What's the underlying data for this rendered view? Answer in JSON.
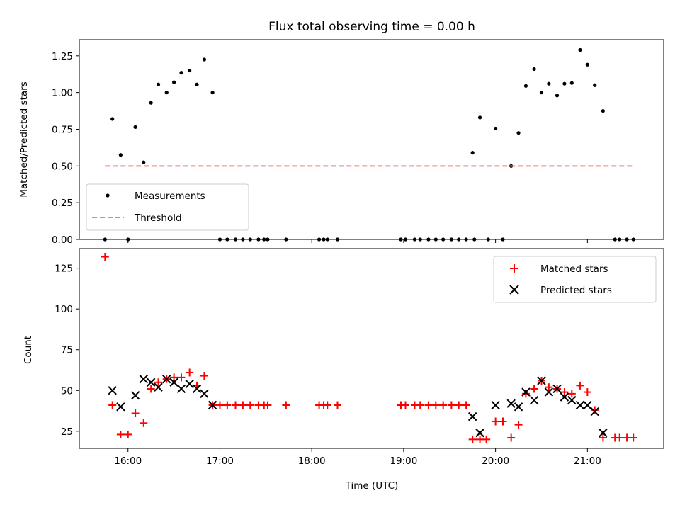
{
  "chart_data": [
    {
      "type": "scatter",
      "title": "Flux total observing time = 0.00 h",
      "xlabel": "",
      "ylabel": "Matched/Predicted stars",
      "xlim": [
        15.47,
        21.83
      ],
      "ylim": [
        0.0,
        1.36
      ],
      "yticks": [
        "0.00",
        "0.25",
        "0.50",
        "0.75",
        "1.00",
        "1.25"
      ],
      "ytick_values": [
        0.0,
        0.25,
        0.5,
        0.75,
        1.0,
        1.25
      ],
      "legend_position": "lower-left",
      "series": [
        {
          "name": "Measurements",
          "marker": "dot",
          "color": "#000000",
          "x": [
            15.75,
            15.83,
            15.92,
            16.0,
            16.08,
            16.17,
            16.25,
            16.33,
            16.42,
            16.5,
            16.58,
            16.67,
            16.75,
            16.83,
            16.92,
            17.0,
            17.08,
            17.17,
            17.25,
            17.33,
            17.42,
            17.48,
            17.52,
            17.72,
            18.08,
            18.13,
            18.17,
            18.28,
            18.97,
            19.02,
            19.12,
            19.18,
            19.27,
            19.35,
            19.43,
            19.52,
            19.6,
            19.68,
            19.77,
            19.75,
            19.83,
            19.92,
            20.0,
            20.08,
            20.17,
            20.25,
            20.33,
            20.42,
            20.5,
            20.58,
            20.67,
            20.75,
            20.83,
            20.92,
            21.0,
            21.08,
            21.17,
            21.3,
            21.35,
            21.43,
            21.5
          ],
          "y": [
            0.0,
            0.82,
            0.575,
            0.0,
            0.765,
            0.525,
            0.93,
            1.055,
            1.0,
            1.07,
            1.135,
            1.15,
            1.055,
            1.225,
            1.0,
            0.0,
            0.0,
            0.0,
            0.0,
            0.0,
            0.0,
            0.0,
            0.0,
            0.0,
            0.0,
            0.0,
            0.0,
            0.0,
            0.0,
            0.0,
            0.0,
            0.0,
            0.0,
            0.0,
            0.0,
            0.0,
            0.0,
            0.0,
            0.0,
            0.59,
            0.83,
            0.0,
            0.755,
            0.0,
            0.5,
            0.725,
            1.045,
            1.16,
            1.0,
            1.06,
            0.98,
            1.06,
            1.065,
            1.29,
            1.19,
            1.05,
            0.875,
            0.0,
            0.0,
            0.0,
            0.0
          ]
        },
        {
          "name": "Threshold",
          "type": "line",
          "style": "dashed",
          "color": "#f08080",
          "x": [
            15.75,
            21.5
          ],
          "y": [
            0.5,
            0.5
          ]
        }
      ]
    },
    {
      "type": "scatter",
      "title": "",
      "xlabel": "Time (UTC)",
      "ylabel": "Count",
      "xlim": [
        15.47,
        21.83
      ],
      "ylim": [
        14.5,
        137
      ],
      "xticks": [
        "16:00",
        "17:00",
        "18:00",
        "19:00",
        "20:00",
        "21:00"
      ],
      "xtick_values": [
        16,
        17,
        18,
        19,
        20,
        21
      ],
      "yticks": [
        "25",
        "50",
        "75",
        "100",
        "125"
      ],
      "ytick_values": [
        25,
        50,
        75,
        100,
        125
      ],
      "legend_position": "top-right",
      "series": [
        {
          "name": "Matched stars",
          "marker": "plus",
          "color": "#ff0000",
          "x": [
            15.75,
            15.83,
            15.92,
            16.0,
            16.08,
            16.17,
            16.25,
            16.33,
            16.42,
            16.5,
            16.58,
            16.67,
            16.75,
            16.83,
            16.92,
            17.0,
            17.08,
            17.17,
            17.25,
            17.33,
            17.42,
            17.48,
            17.52,
            17.72,
            18.08,
            18.13,
            18.17,
            18.28,
            18.97,
            19.02,
            19.12,
            19.18,
            19.27,
            19.35,
            19.43,
            19.52,
            19.6,
            19.68,
            19.75,
            19.83,
            19.9,
            20.0,
            20.08,
            20.17,
            20.25,
            20.33,
            20.42,
            20.5,
            20.58,
            20.67,
            20.75,
            20.83,
            20.92,
            21.0,
            21.08,
            21.17,
            21.3,
            21.35,
            21.43,
            21.5
          ],
          "y": [
            132,
            41,
            23,
            23,
            36,
            30,
            51,
            55,
            57,
            58,
            58,
            61,
            53,
            59,
            41,
            41,
            41,
            41,
            41,
            41,
            41,
            41,
            41,
            41,
            41,
            41,
            41,
            41,
            41,
            41,
            41,
            41,
            41,
            41,
            41,
            41,
            41,
            41,
            20,
            20,
            20,
            31,
            31,
            21,
            29,
            48,
            51,
            56,
            52,
            51,
            49,
            48,
            53,
            49,
            38,
            21,
            21,
            21,
            21,
            21
          ]
        },
        {
          "name": "Predicted stars",
          "marker": "x",
          "color": "#000000",
          "x": [
            15.83,
            15.92,
            16.08,
            16.17,
            16.25,
            16.33,
            16.42,
            16.5,
            16.58,
            16.67,
            16.75,
            16.83,
            16.92,
            19.75,
            19.83,
            20.0,
            20.17,
            20.25,
            20.33,
            20.42,
            20.5,
            20.58,
            20.67,
            20.75,
            20.83,
            20.92,
            21.0,
            21.08,
            21.17
          ],
          "y": [
            50,
            40,
            47,
            57,
            55,
            52,
            57,
            55,
            51,
            54,
            51,
            48,
            41,
            34,
            24,
            41,
            42,
            40,
            49,
            44,
            56,
            49,
            51,
            46,
            44,
            41,
            41,
            37,
            24
          ]
        }
      ]
    }
  ]
}
